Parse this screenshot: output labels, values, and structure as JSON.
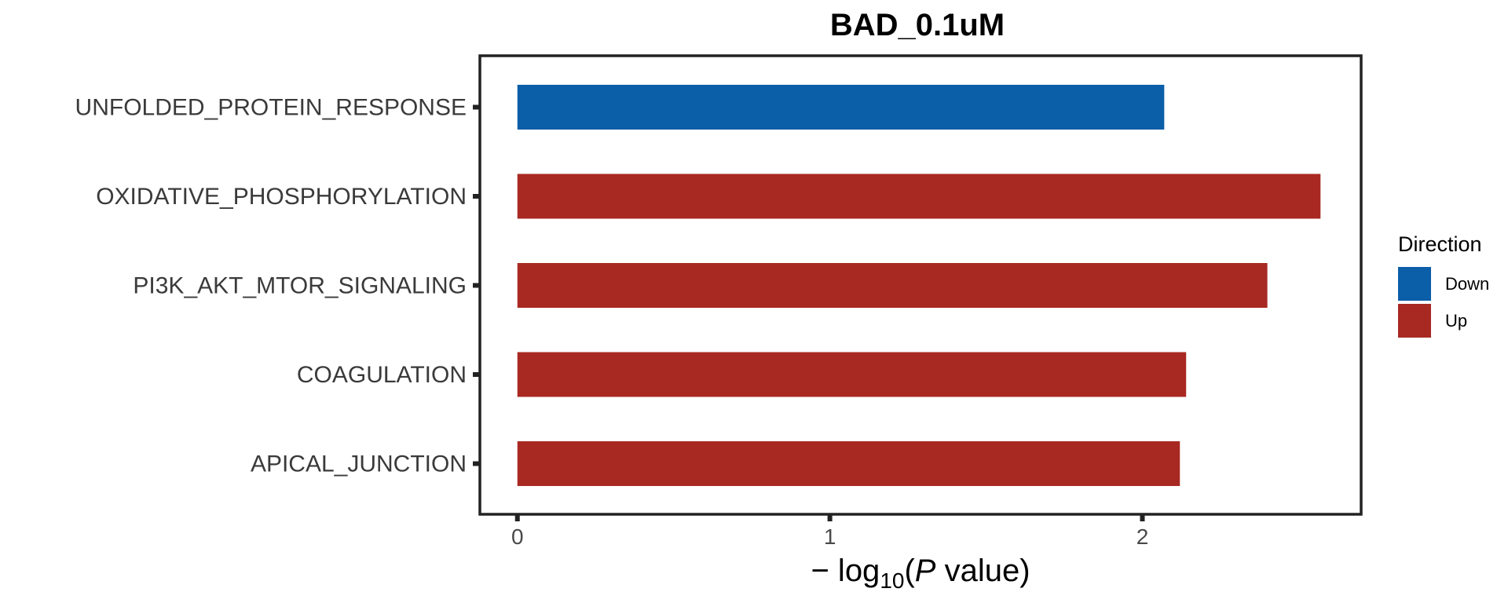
{
  "chart_data": {
    "type": "bar",
    "orientation": "horizontal",
    "title": "BAD_0.1uM",
    "categories": [
      "UNFOLDED_PROTEIN_RESPONSE",
      "OXIDATIVE_PHOSPHORYLATION",
      "PI3K_AKT_MTOR_SIGNALING",
      "COAGULATION",
      "APICAL_JUNCTION"
    ],
    "values": [
      2.07,
      2.57,
      2.4,
      2.14,
      2.12
    ],
    "direction": [
      "Down",
      "Up",
      "Up",
      "Up",
      "Up"
    ],
    "xlabel": {
      "prefix": "− log",
      "subscript": "10",
      "open": "(",
      "italic": "P",
      "rest": " value)"
    },
    "xlim": [
      -0.12,
      2.7
    ],
    "xticks": [
      "0",
      "1",
      "2"
    ],
    "grid": false,
    "legend": {
      "title": "Direction",
      "position": "right",
      "entries": [
        {
          "label": "Down",
          "color": "#0b5ea8"
        },
        {
          "label": "Up",
          "color": "#a82922"
        }
      ]
    },
    "colors": {
      "Down": "#0b5ea8",
      "Up": "#a82922"
    }
  }
}
